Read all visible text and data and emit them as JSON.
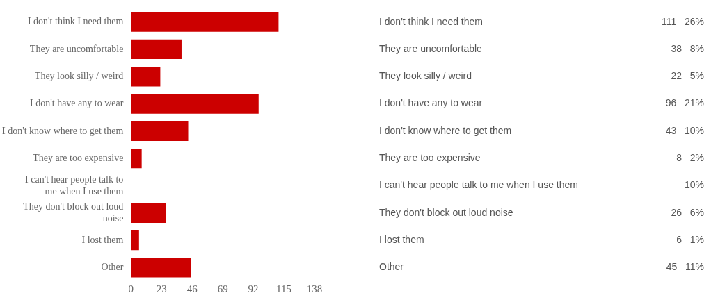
{
  "chart_data": {
    "type": "bar",
    "orientation": "horizontal",
    "categories": [
      "I don't think I need them",
      "They are uncomfortable",
      "They look silly / weird",
      "I don't have any to wear",
      "I don't know where to get them",
      "They are too expensive",
      "I can't hear people talk to me when I use them",
      "They don't block out loud noise",
      "I lost them",
      "Other"
    ],
    "values": [
      111,
      38,
      22,
      96,
      43,
      8,
      null,
      26,
      6,
      45
    ],
    "color": "#cc0000",
    "value_labels": [
      "111   26%",
      "38   8%",
      "22   5%",
      "96   21%",
      "43   10%",
      "8   2%",
      "10%",
      "26   6%",
      "6   1%",
      "45   11%"
    ],
    "xlim": [
      0,
      138
    ],
    "xticks": [
      0,
      23,
      46,
      69,
      92,
      115,
      138
    ],
    "grid": false,
    "legend": false
  }
}
